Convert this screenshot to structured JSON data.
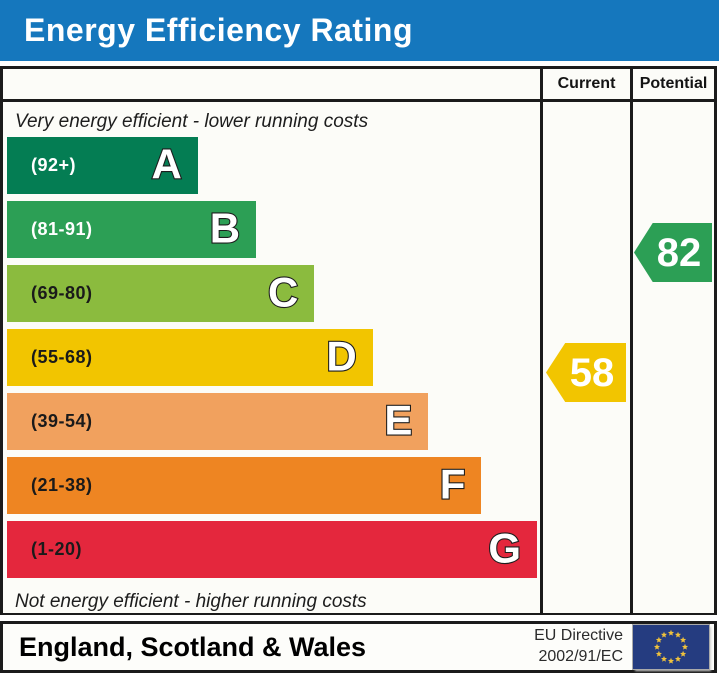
{
  "title": "Energy Efficiency Rating",
  "table": {
    "current_header": "Current",
    "potential_header": "Potential"
  },
  "captions": {
    "top": "Very energy efficient - lower running costs",
    "bottom": "Not energy efficient - higher running costs"
  },
  "chart_data": {
    "type": "bar",
    "title": "Energy Efficiency Rating",
    "categories": [
      "A",
      "B",
      "C",
      "D",
      "E",
      "F",
      "G"
    ],
    "bands": [
      {
        "letter": "A",
        "range": "(92+)",
        "min": 92,
        "max": 100,
        "color": "#047d53",
        "label_color": "#ffffff",
        "width_pct": 36
      },
      {
        "letter": "B",
        "range": "(81-91)",
        "min": 81,
        "max": 91,
        "color": "#2c9f55",
        "label_color": "#ffffff",
        "width_pct": 47
      },
      {
        "letter": "C",
        "range": "(69-80)",
        "min": 69,
        "max": 80,
        "color": "#8bbb3e",
        "label_color": "#1a1a1a",
        "width_pct": 58
      },
      {
        "letter": "D",
        "range": "(55-68)",
        "min": 55,
        "max": 68,
        "color": "#f2c500",
        "label_color": "#1a1a1a",
        "width_pct": 69
      },
      {
        "letter": "E",
        "range": "(39-54)",
        "min": 39,
        "max": 54,
        "color": "#f1a15e",
        "label_color": "#1a1a1a",
        "width_pct": 79.5
      },
      {
        "letter": "F",
        "range": "(21-38)",
        "min": 21,
        "max": 38,
        "color": "#ee8522",
        "label_color": "#1a1a1a",
        "width_pct": 89.5
      },
      {
        "letter": "G",
        "range": "(1-20)",
        "min": 1,
        "max": 20,
        "color": "#e4273d",
        "label_color": "#1a1a1a",
        "width_pct": 100
      }
    ],
    "markers": {
      "current": {
        "value": 58,
        "band": "D",
        "color": "#f2c500"
      },
      "potential": {
        "value": 82,
        "band": "B",
        "color": "#2c9f55"
      }
    }
  },
  "footer": {
    "region": "England, Scotland & Wales",
    "directive_line1": "EU Directive",
    "directive_line2": "2002/91/EC",
    "flag": "eu-flag"
  },
  "colors": {
    "title_bar": "#1577bd",
    "eu_flag_blue": "#253c80",
    "eu_star_yellow": "#f0c23c"
  }
}
